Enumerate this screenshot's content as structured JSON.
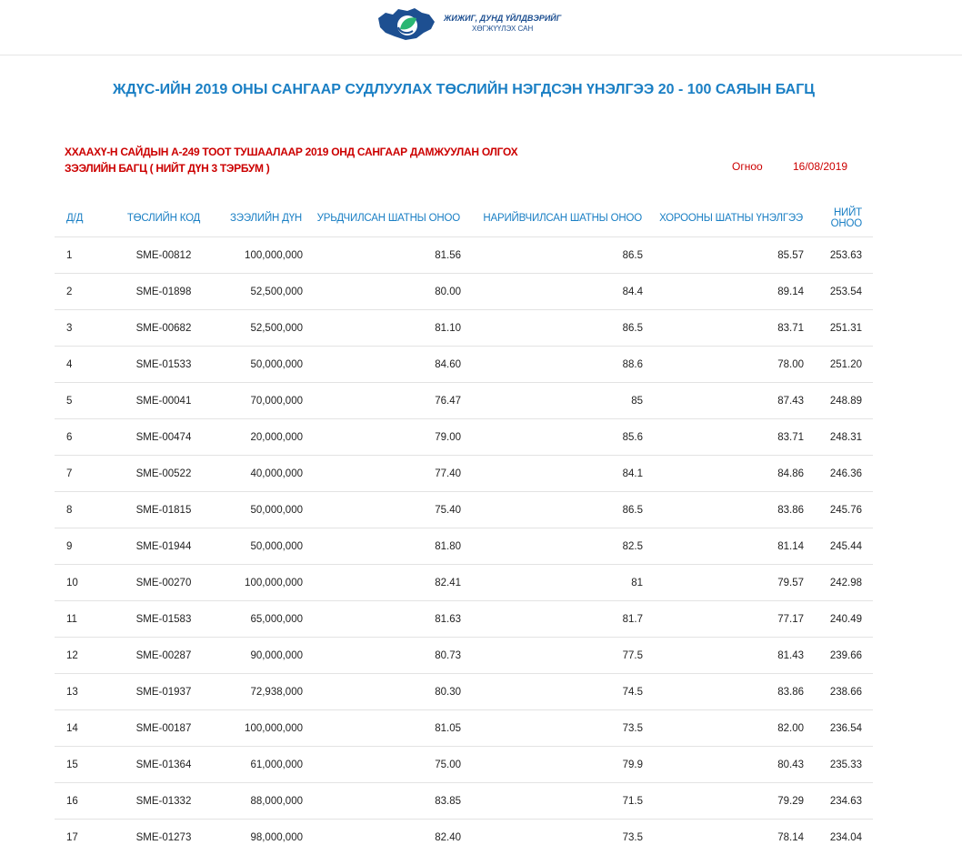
{
  "logo": {
    "line1": "ЖИЖИГ, ДУНД ҮЙЛДВЭРИЙГ",
    "line2": "ХӨГЖҮҮЛЭХ САН"
  },
  "title": "ЖДҮС-ИЙН 2019 ОНЫ САНГААР СУДЛУУЛАХ ТӨСЛИЙН НЭГДСЭН ҮНЭЛГЭЭ 20 - 100 САЯЫН БАГЦ",
  "subtitle": {
    "line1": "ХХААХҮ-Н САЙДЫН А-249 ТООТ ТУШААЛААР 2019 ОНД САНГААР ДАМЖУУЛАН ОЛГОХ",
    "line2": "ЗЭЭЛИЙН БАГЦ ( НИЙТ ДҮН 3 ТЭРБУМ )"
  },
  "date": {
    "label": "Огноо",
    "value": "16/08/2019"
  },
  "columns": [
    "Д/Д",
    "ТӨСЛИЙН КОД",
    "ЗЭЭЛИЙН ДҮН",
    "УРЬДЧИЛСАН ШАТНЫ ОНОО",
    "НАРИЙВЧИЛСАН ШАТНЫ ОНОО",
    "ХОРООНЫ ШАТНЫ ҮНЭЛГЭЭ",
    "НИЙТ ОНОО"
  ],
  "rows": [
    [
      "1",
      "SME-00812",
      "100,000,000",
      "81.56",
      "86.5",
      "85.57",
      "253.63"
    ],
    [
      "2",
      "SME-01898",
      "52,500,000",
      "80.00",
      "84.4",
      "89.14",
      "253.54"
    ],
    [
      "3",
      "SME-00682",
      "52,500,000",
      "81.10",
      "86.5",
      "83.71",
      "251.31"
    ],
    [
      "4",
      "SME-01533",
      "50,000,000",
      "84.60",
      "88.6",
      "78.00",
      "251.20"
    ],
    [
      "5",
      "SME-00041",
      "70,000,000",
      "76.47",
      "85",
      "87.43",
      "248.89"
    ],
    [
      "6",
      "SME-00474",
      "20,000,000",
      "79.00",
      "85.6",
      "83.71",
      "248.31"
    ],
    [
      "7",
      "SME-00522",
      "40,000,000",
      "77.40",
      "84.1",
      "84.86",
      "246.36"
    ],
    [
      "8",
      "SME-01815",
      "50,000,000",
      "75.40",
      "86.5",
      "83.86",
      "245.76"
    ],
    [
      "9",
      "SME-01944",
      "50,000,000",
      "81.80",
      "82.5",
      "81.14",
      "245.44"
    ],
    [
      "10",
      "SME-00270",
      "100,000,000",
      "82.41",
      "81",
      "79.57",
      "242.98"
    ],
    [
      "11",
      "SME-01583",
      "65,000,000",
      "81.63",
      "81.7",
      "77.17",
      "240.49"
    ],
    [
      "12",
      "SME-00287",
      "90,000,000",
      "80.73",
      "77.5",
      "81.43",
      "239.66"
    ],
    [
      "13",
      "SME-01937",
      "72,938,000",
      "80.30",
      "74.5",
      "83.86",
      "238.66"
    ],
    [
      "14",
      "SME-00187",
      "100,000,000",
      "81.05",
      "73.5",
      "82.00",
      "236.54"
    ],
    [
      "15",
      "SME-01364",
      "61,000,000",
      "75.00",
      "79.9",
      "80.43",
      "235.33"
    ],
    [
      "16",
      "SME-01332",
      "88,000,000",
      "83.85",
      "71.5",
      "79.29",
      "234.63"
    ],
    [
      "17",
      "SME-01273",
      "98,000,000",
      "82.40",
      "73.5",
      "78.14",
      "234.04"
    ]
  ]
}
